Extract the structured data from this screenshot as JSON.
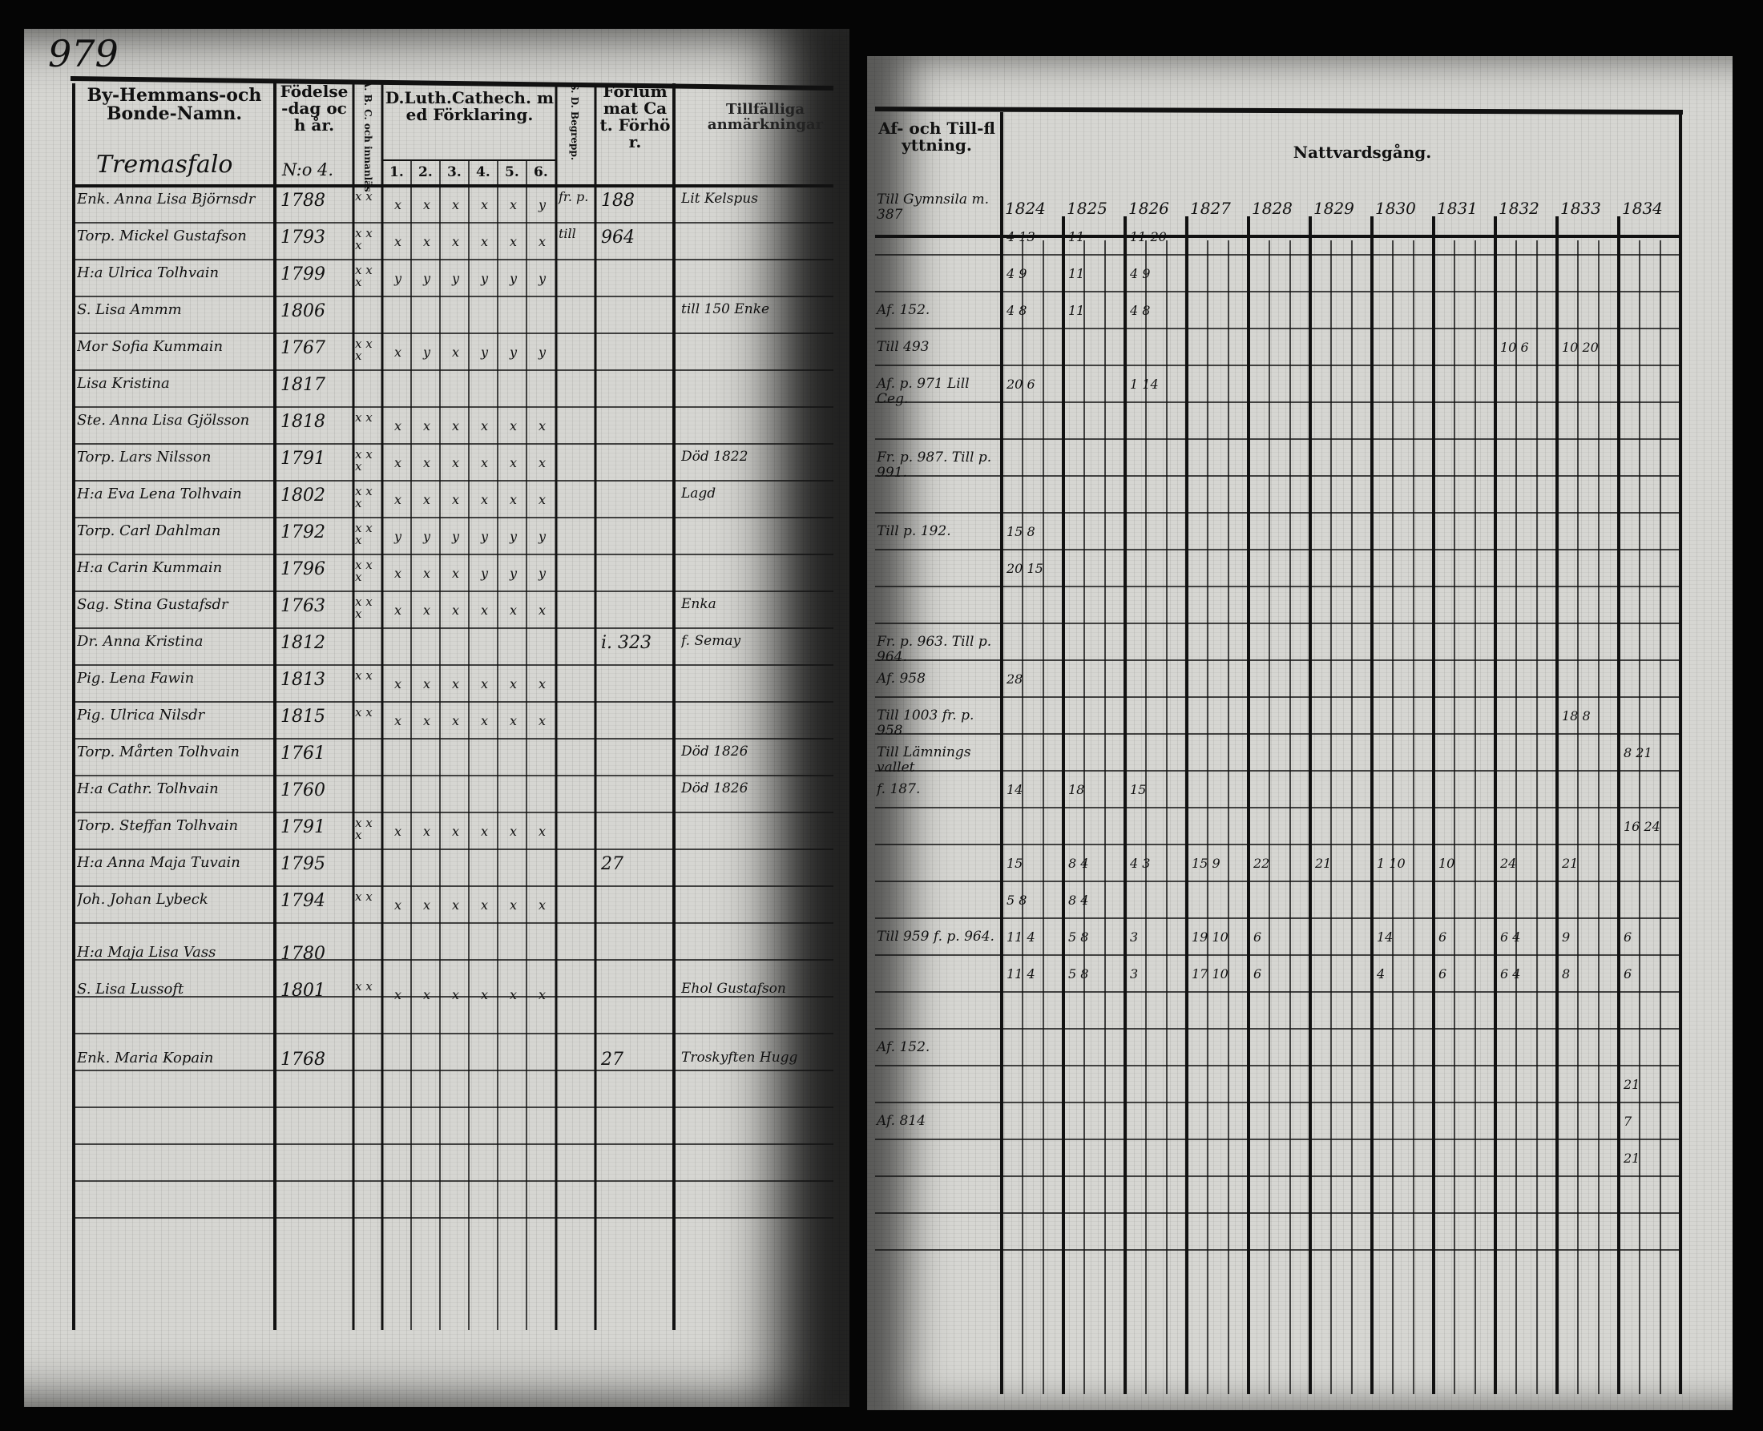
{
  "left_page": {
    "page_number": "979",
    "headers": {
      "name": "By-Hemmans-och Bonde-Namn.",
      "birth": "Födelse-dag och år.",
      "abc": "A. B. C. och innanläs",
      "catech": "D.Luth.Cathech. med Förklaring.",
      "catech_parts": [
        "1.",
        "2.",
        "3.",
        "4.",
        "5.",
        "6."
      ],
      "sd": "S. D. Begrepp.",
      "forhor": "Förlummat Cat. Förhör.",
      "tillfalliga": "Tillfälliga anmärkningar"
    },
    "village": "Tremasfalo",
    "village_no": "N:o 4.",
    "rows": [
      {
        "name": "Enk. Anna Lisa Björnsdr",
        "birth": "1788",
        "marks": "x x",
        "catech": [
          "x",
          "x",
          "x",
          "x",
          "x",
          "y"
        ],
        "sd": "fr. p.",
        "forhor": "188",
        "note": "Lit Kelspus"
      },
      {
        "name": "Torp. Mickel Gustafson",
        "birth": "1793",
        "marks": "x x x",
        "catech": [
          "x",
          "x",
          "x",
          "x",
          "x",
          "x"
        ],
        "sd": "till",
        "forhor": "964",
        "note": ""
      },
      {
        "name": "H:a Ulrica Tolhvain",
        "birth": "1799",
        "marks": "x x x",
        "catech": [
          "y",
          "y",
          "y",
          "y",
          "y",
          "y"
        ],
        "sd": "",
        "forhor": "",
        "note": ""
      },
      {
        "name": "S. Lisa Ammm",
        "birth": "1806",
        "marks": "",
        "catech": [
          "",
          "",
          "",
          "",
          "",
          ""
        ],
        "sd": "",
        "forhor": "",
        "note": "till 150 Enke"
      },
      {
        "name": "Mor Sofia Kummain",
        "birth": "1767",
        "marks": "x x x",
        "catech": [
          "x",
          "y",
          "x",
          "y",
          "y",
          "y"
        ],
        "sd": "",
        "forhor": "",
        "note": ""
      },
      {
        "name": "Lisa Kristina",
        "birth": "1817",
        "marks": "",
        "catech": [
          "",
          "",
          "",
          "",
          "",
          ""
        ],
        "sd": "",
        "forhor": "",
        "note": ""
      },
      {
        "name": "Ste. Anna Lisa Gjölsson",
        "birth": "1818",
        "marks": "x x",
        "catech": [
          "x",
          "x",
          "x",
          "x",
          "x",
          "x"
        ],
        "sd": "",
        "forhor": "",
        "note": ""
      },
      {
        "name": "Torp. Lars Nilsson",
        "birth": "1791",
        "marks": "x x x",
        "catech": [
          "x",
          "x",
          "x",
          "x",
          "x",
          "x"
        ],
        "sd": "",
        "forhor": "",
        "note": "Död 1822"
      },
      {
        "name": "H:a Eva Lena Tolhvain",
        "birth": "1802",
        "marks": "x x x",
        "catech": [
          "x",
          "x",
          "x",
          "x",
          "x",
          "x"
        ],
        "sd": "",
        "forhor": "",
        "note": "Lagd"
      },
      {
        "name": "Torp. Carl Dahlman",
        "birth": "1792",
        "marks": "x x x",
        "catech": [
          "y",
          "y",
          "y",
          "y",
          "y",
          "y"
        ],
        "sd": "",
        "forhor": "",
        "note": ""
      },
      {
        "name": "H:a Carin Kummain",
        "birth": "1796",
        "marks": "x x x",
        "catech": [
          "x",
          "x",
          "x",
          "y",
          "y",
          "y"
        ],
        "sd": "",
        "forhor": "",
        "note": ""
      },
      {
        "name": "Sag. Stina Gustafsdr",
        "birth": "1763",
        "marks": "x x x",
        "catech": [
          "x",
          "x",
          "x",
          "x",
          "x",
          "x"
        ],
        "sd": "",
        "forhor": "",
        "note": "Enka"
      },
      {
        "name": "Dr. Anna Kristina",
        "birth": "1812",
        "marks": "",
        "catech": [
          "",
          "",
          "",
          "",
          "",
          ""
        ],
        "sd": "",
        "forhor": "i. 323",
        "note": "f. Semay"
      },
      {
        "name": "Pig. Lena Fawin",
        "birth": "1813",
        "marks": "x x",
        "catech": [
          "x",
          "x",
          "x",
          "x",
          "x",
          "x"
        ],
        "sd": "",
        "forhor": "",
        "note": ""
      },
      {
        "name": "Pig. Ulrica Nilsdr",
        "birth": "1815",
        "marks": "x x",
        "catech": [
          "x",
          "x",
          "x",
          "x",
          "x",
          "x"
        ],
        "sd": "",
        "forhor": "",
        "note": ""
      },
      {
        "name": "Torp. Mårten Tolhvain",
        "birth": "1761",
        "marks": "",
        "catech": [
          "",
          "",
          "",
          "",
          "",
          ""
        ],
        "sd": "",
        "forhor": "",
        "note": "Död 1826"
      },
      {
        "name": "H:a Cathr. Tolhvain",
        "birth": "1760",
        "marks": "",
        "catech": [
          "",
          "",
          "",
          "",
          "",
          ""
        ],
        "sd": "",
        "forhor": "",
        "note": "Död 1826"
      },
      {
        "name": "Torp. Steffan Tolhvain",
        "birth": "1791",
        "marks": "x x x",
        "catech": [
          "x",
          "x",
          "x",
          "x",
          "x",
          "x"
        ],
        "sd": "",
        "forhor": "",
        "note": ""
      },
      {
        "name": "H:a Anna Maja Tuvain",
        "birth": "1795",
        "marks": "",
        "catech": [
          "",
          "",
          "",
          "",
          "",
          ""
        ],
        "sd": "",
        "forhor": "27",
        "note": ""
      },
      {
        "name": "Joh. Johan Lybeck",
        "birth": "1794",
        "marks": "x x",
        "catech": [
          "x",
          "x",
          "x",
          "x",
          "x",
          "x"
        ],
        "sd": "",
        "forhor": "",
        "note": ""
      },
      {
        "name": "H:a Maja Lisa Vass",
        "birth": "1780",
        "marks": "",
        "catech": [
          "",
          "",
          "",
          "",
          "",
          ""
        ],
        "sd": "",
        "forhor": "",
        "note": ""
      },
      {
        "name": "S. Lisa Lussoft",
        "birth": "1801",
        "marks": "x x",
        "catech": [
          "x",
          "x",
          "x",
          "x",
          "x",
          "x"
        ],
        "sd": "",
        "forhor": "",
        "note": "Ehol Gustafson"
      },
      {
        "name": "Enk. Maria Kopain",
        "birth": "1768",
        "marks": "",
        "catech": [
          "",
          "",
          "",
          "",
          "",
          ""
        ],
        "sd": "",
        "forhor": "27",
        "note": "Troskyften Hugg"
      }
    ]
  },
  "right_page": {
    "headers": {
      "moving": "Af- och Till-flyttning.",
      "communion": "Nattvardsgång."
    },
    "years": [
      "1824",
      "1825",
      "1826",
      "1827",
      "1828",
      "1829",
      "1830",
      "1831",
      "1832",
      "1833",
      "1834"
    ],
    "moving_notes": [
      {
        "row": 0,
        "text": "Till Gymnsila m. 387"
      },
      {
        "row": 3,
        "text": "Af. 152."
      },
      {
        "row": 4,
        "text": "Till 493"
      },
      {
        "row": 5,
        "text": "Af. p. 971 Lill Ceg."
      },
      {
        "row": 7,
        "text": "Fr. p. 987. Till p. 991."
      },
      {
        "row": 9,
        "text": "Till p. 192."
      },
      {
        "row": 12,
        "text": "Fr. p. 963. Till p. 964."
      },
      {
        "row": 13,
        "text": "Af. 958"
      },
      {
        "row": 14,
        "text": "Till 1003 fr. p. 958"
      },
      {
        "row": 15,
        "text": "Till Lämnings vallet"
      },
      {
        "row": 16,
        "text": "f. 187."
      },
      {
        "row": 20,
        "text": "Till 959 f. p. 964."
      },
      {
        "row": 23,
        "text": "Af. 152."
      },
      {
        "row": 25,
        "text": "Af. 814"
      }
    ],
    "communion_marks": [
      {
        "row": 1,
        "col": 0,
        "text": "4 13"
      },
      {
        "row": 1,
        "col": 1,
        "text": "11"
      },
      {
        "row": 1,
        "col": 2,
        "text": "11 20"
      },
      {
        "row": 2,
        "col": 0,
        "text": "4 9"
      },
      {
        "row": 2,
        "col": 1,
        "text": "11"
      },
      {
        "row": 2,
        "col": 2,
        "text": "4 9"
      },
      {
        "row": 3,
        "col": 0,
        "text": "4 8"
      },
      {
        "row": 3,
        "col": 1,
        "text": "11"
      },
      {
        "row": 3,
        "col": 2,
        "text": "4 8"
      },
      {
        "row": 4,
        "col": 8,
        "text": "10 6"
      },
      {
        "row": 4,
        "col": 9,
        "text": "10 20"
      },
      {
        "row": 5,
        "col": 0,
        "text": "20 6"
      },
      {
        "row": 5,
        "col": 2,
        "text": "1 14"
      },
      {
        "row": 9,
        "col": 0,
        "text": "15 8"
      },
      {
        "row": 10,
        "col": 0,
        "text": "20 15"
      },
      {
        "row": 13,
        "col": 0,
        "text": "28"
      },
      {
        "row": 14,
        "col": 9,
        "text": "18 8"
      },
      {
        "row": 15,
        "col": 10,
        "text": "8 21"
      },
      {
        "row": 16,
        "col": 0,
        "text": "14"
      },
      {
        "row": 16,
        "col": 1,
        "text": "18"
      },
      {
        "row": 16,
        "col": 2,
        "text": "15"
      },
      {
        "row": 17,
        "col": 10,
        "text": "16 24"
      },
      {
        "row": 18,
        "col": 0,
        "text": "15"
      },
      {
        "row": 18,
        "col": 1,
        "text": "8 4"
      },
      {
        "row": 18,
        "col": 2,
        "text": "4 3"
      },
      {
        "row": 18,
        "col": 3,
        "text": "15 9"
      },
      {
        "row": 18,
        "col": 4,
        "text": "22"
      },
      {
        "row": 18,
        "col": 5,
        "text": "21"
      },
      {
        "row": 18,
        "col": 6,
        "text": "1 10"
      },
      {
        "row": 18,
        "col": 7,
        "text": "10"
      },
      {
        "row": 18,
        "col": 8,
        "text": "24"
      },
      {
        "row": 18,
        "col": 9,
        "text": "21"
      },
      {
        "row": 19,
        "col": 0,
        "text": "5 8"
      },
      {
        "row": 19,
        "col": 1,
        "text": "8 4"
      },
      {
        "row": 20,
        "col": 0,
        "text": "11 4"
      },
      {
        "row": 20,
        "col": 1,
        "text": "5 8"
      },
      {
        "row": 20,
        "col": 2,
        "text": "3"
      },
      {
        "row": 20,
        "col": 3,
        "text": "19 10"
      },
      {
        "row": 20,
        "col": 4,
        "text": "6"
      },
      {
        "row": 20,
        "col": 6,
        "text": "14"
      },
      {
        "row": 20,
        "col": 7,
        "text": "6"
      },
      {
        "row": 20,
        "col": 8,
        "text": "6 4"
      },
      {
        "row": 20,
        "col": 9,
        "text": "9"
      },
      {
        "row": 20,
        "col": 10,
        "text": "6"
      },
      {
        "row": 21,
        "col": 0,
        "text": "11 4"
      },
      {
        "row": 21,
        "col": 1,
        "text": "5 8"
      },
      {
        "row": 21,
        "col": 2,
        "text": "3"
      },
      {
        "row": 21,
        "col": 3,
        "text": "17 10"
      },
      {
        "row": 21,
        "col": 4,
        "text": "6"
      },
      {
        "row": 21,
        "col": 6,
        "text": "4"
      },
      {
        "row": 21,
        "col": 7,
        "text": "6"
      },
      {
        "row": 21,
        "col": 8,
        "text": "6 4"
      },
      {
        "row": 21,
        "col": 9,
        "text": "8"
      },
      {
        "row": 21,
        "col": 10,
        "text": "6"
      },
      {
        "row": 24,
        "col": 10,
        "text": "21"
      },
      {
        "row": 25,
        "col": 10,
        "text": "7"
      },
      {
        "row": 26,
        "col": 10,
        "text": "21"
      }
    ]
  }
}
